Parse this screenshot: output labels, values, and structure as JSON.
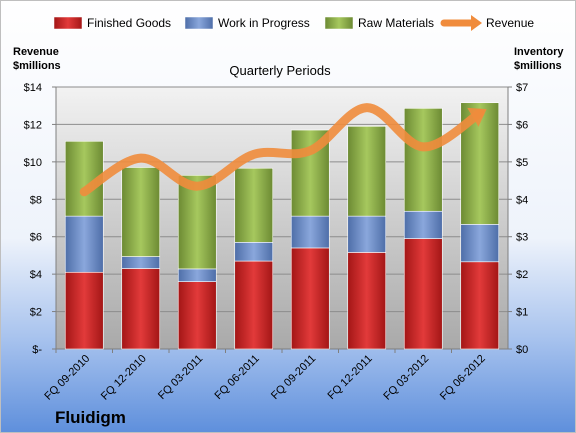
{
  "company": "Fluidigm",
  "chart_data": {
    "type": "bar",
    "stacked": true,
    "title": "",
    "subtitle": "Quarterly Periods",
    "xlabel": "",
    "ylabel_left": "Revenue\n$millions",
    "ylabel_right": "Inventory\n$millions",
    "categories": [
      "FQ 09-2010",
      "FQ 12-2010",
      "FQ 03-2011",
      "FQ 06-2011",
      "FQ 09-2011",
      "FQ 12-2011",
      "FQ 03-2012",
      "FQ 06-2012"
    ],
    "left_axis": {
      "range": [
        0,
        14
      ],
      "ticks": [
        "$-",
        "$2",
        "$4",
        "$6",
        "$8",
        "$10",
        "$12",
        "$14"
      ],
      "tick_values": [
        0,
        2,
        4,
        6,
        8,
        10,
        12,
        14
      ]
    },
    "right_axis": {
      "range": [
        0,
        7
      ],
      "ticks": [
        "$0",
        "$1",
        "$2",
        "$3",
        "$4",
        "$5",
        "$6",
        "$7"
      ],
      "tick_values": [
        0,
        1,
        2,
        3,
        4,
        5,
        6,
        7
      ]
    },
    "series": [
      {
        "name": "Finished Goods",
        "axis": "right",
        "kind": "bar",
        "color": "#cc2222",
        "values": [
          2.05,
          2.15,
          1.8,
          2.35,
          2.7,
          2.58,
          2.95,
          2.33
        ]
      },
      {
        "name": "Work in Progress",
        "axis": "right",
        "kind": "bar",
        "color": "#6b8fcc",
        "values": [
          1.5,
          0.32,
          0.34,
          0.5,
          0.85,
          0.97,
          0.73,
          1.0
        ]
      },
      {
        "name": "Raw Materials",
        "axis": "right",
        "kind": "bar",
        "color": "#8db04a",
        "values": [
          2.0,
          2.38,
          2.5,
          1.98,
          2.3,
          2.4,
          2.75,
          3.25
        ]
      },
      {
        "name": "Revenue",
        "axis": "left",
        "kind": "line",
        "color": "#f08c3c",
        "values": [
          8.4,
          10.2,
          8.7,
          10.4,
          10.6,
          12.9,
          10.8,
          12.6
        ]
      }
    ],
    "legend_position": "top",
    "grid": true
  }
}
